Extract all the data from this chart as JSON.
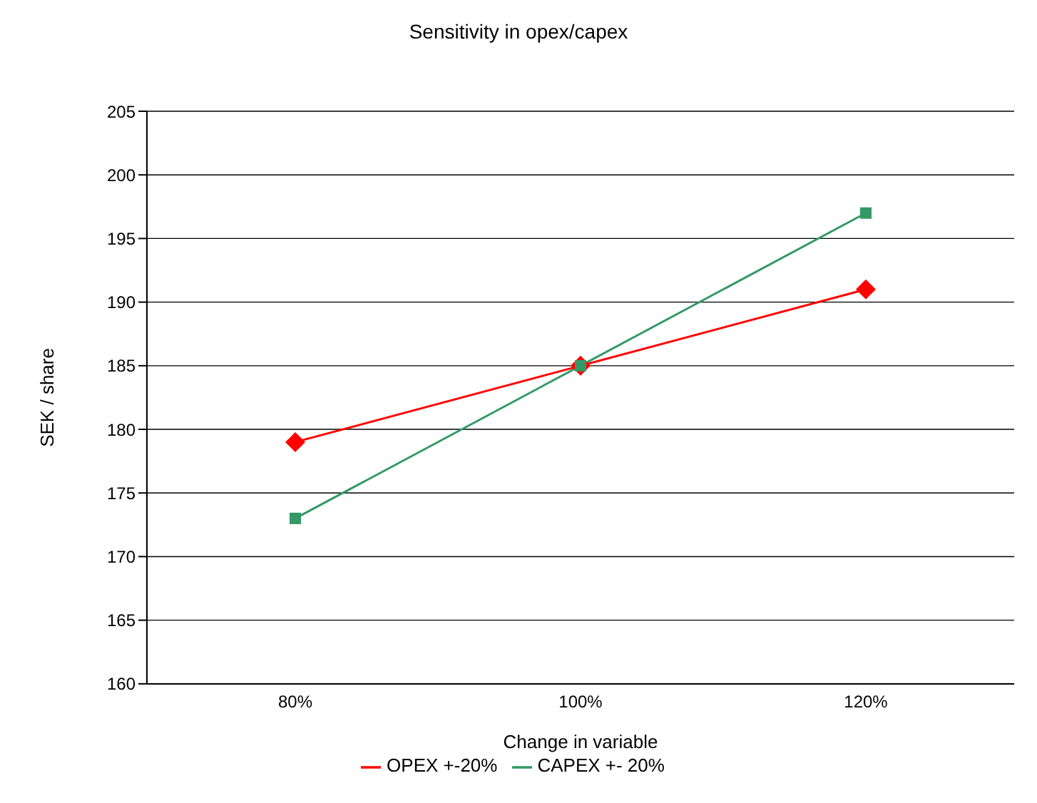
{
  "chart_data": {
    "type": "line",
    "title": "Sensitivity in opex/capex",
    "xlabel": "Change in variable",
    "ylabel": "SEK / share",
    "categories": [
      "80%",
      "100%",
      "120%"
    ],
    "series": [
      {
        "name": "OPEX  +-20%",
        "color": "#ff0000",
        "marker": "diamond",
        "values": [
          179,
          185,
          191
        ]
      },
      {
        "name": "CAPEX +- 20%",
        "color": "#339966",
        "marker": "square",
        "values": [
          173,
          185,
          197
        ]
      }
    ],
    "ylim": [
      160,
      205
    ],
    "yticks": [
      160,
      165,
      170,
      175,
      180,
      185,
      190,
      195,
      200,
      205
    ],
    "grid": "y",
    "legend": "bottom"
  }
}
